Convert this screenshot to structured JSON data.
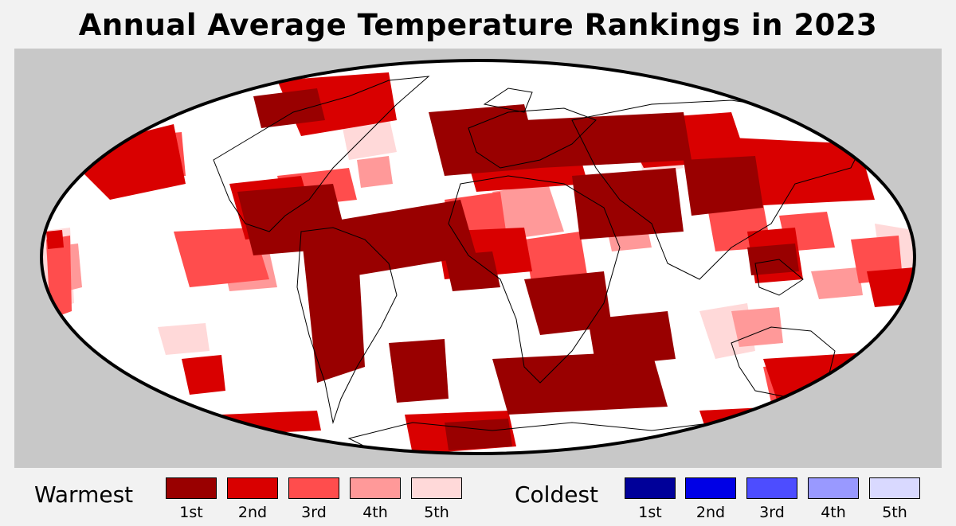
{
  "title": "Annual Average Temperature Rankings in 2023",
  "legend": {
    "warmest": {
      "label": "Warmest",
      "items": [
        {
          "rank": "1st",
          "color": "#990000"
        },
        {
          "rank": "2nd",
          "color": "#d90000"
        },
        {
          "rank": "3rd",
          "color": "#ff4d4d"
        },
        {
          "rank": "4th",
          "color": "#ff9999"
        },
        {
          "rank": "5th",
          "color": "#ffd9d9"
        }
      ]
    },
    "coldest": {
      "label": "Coldest",
      "items": [
        {
          "rank": "1st",
          "color": "#000099"
        },
        {
          "rank": "2nd",
          "color": "#0000e6"
        },
        {
          "rank": "3rd",
          "color": "#4d4dff"
        },
        {
          "rank": "4th",
          "color": "#9999ff"
        },
        {
          "rank": "5th",
          "color": "#d9d9ff"
        }
      ]
    }
  },
  "colors": {
    "background": "#f2f2f2",
    "map_frame": "#c8c8c8",
    "not_ranked": "#ffffff"
  }
}
